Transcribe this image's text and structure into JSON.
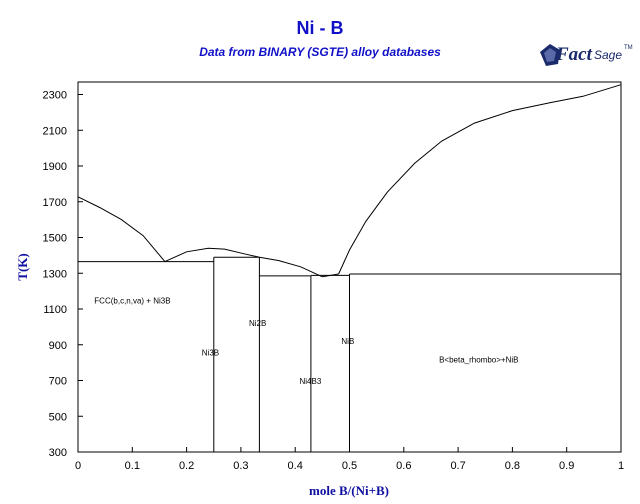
{
  "title": "Ni - B",
  "subtitle": "Data from BINARY (SGTE) alloy databases",
  "logo": {
    "fact": "Fact",
    "sage": "Sage",
    "tm": "TM",
    "icon": "factsage-logo-icon",
    "color": "#1a2a6a"
  },
  "colors": {
    "title": "#1010c8",
    "axis_label": "#1010a0",
    "line": "#000000"
  },
  "chart_data": {
    "type": "line",
    "title": "Ni - B",
    "subtitle": "Data from BINARY (SGTE) alloy databases",
    "xlabel": "mole B/(Ni+B)",
    "ylabel": "T(K)",
    "xlim": [
      0,
      1
    ],
    "ylim": [
      300,
      2370
    ],
    "xticks": [
      0,
      0.1,
      0.2,
      0.3,
      0.4,
      0.5,
      0.6,
      0.7,
      0.8,
      0.9,
      1
    ],
    "xtick_labels": [
      "0",
      "0.1",
      "0.2",
      "0.3",
      "0.4",
      "0.5",
      "0.6",
      "0.7",
      "0.8",
      "0.9",
      "1"
    ],
    "yticks": [
      300,
      500,
      700,
      900,
      1100,
      1300,
      1500,
      1700,
      1900,
      2100,
      2300
    ],
    "ytick_labels": [
      "300",
      "500",
      "700",
      "900",
      "1100",
      "1300",
      "1500",
      "1700",
      "1900",
      "2100",
      "2300"
    ],
    "grid": false,
    "legend": "none",
    "series": [
      {
        "x": [
          0,
          0.04,
          0.08,
          0.12,
          0.16
        ],
        "y": [
          1728,
          1668,
          1600,
          1510,
          1365
        ]
      },
      {
        "x": [
          0.16,
          0.2,
          0.24,
          0.27,
          0.31,
          0.334
        ],
        "y": [
          1365,
          1420,
          1440,
          1435,
          1406,
          1390
        ]
      },
      {
        "x": [
          0.334,
          0.37,
          0.41,
          0.45
        ],
        "y": [
          1390,
          1371,
          1336,
          1280
        ]
      },
      {
        "x": [
          0.45,
          0.48
        ],
        "y": [
          1280,
          1296
        ]
      },
      {
        "x": [
          0.48,
          0.5,
          0.53,
          0.57,
          0.62,
          0.67,
          0.73,
          0.8,
          0.87,
          0.93,
          1
        ],
        "y": [
          1296,
          1430,
          1590,
          1755,
          1915,
          2040,
          2140,
          2210,
          2255,
          2290,
          2355
        ]
      },
      {
        "x": [
          0,
          0.25
        ],
        "y": [
          1365,
          1365
        ]
      },
      {
        "x": [
          0.25,
          0.334
        ],
        "y": [
          1390,
          1390
        ]
      },
      {
        "x": [
          0.334,
          0.429
        ],
        "y": [
          1285,
          1285
        ]
      },
      {
        "x": [
          0.429,
          0.5
        ],
        "y": [
          1288,
          1288
        ]
      },
      {
        "x": [
          0.5,
          1
        ],
        "y": [
          1296,
          1296
        ]
      },
      {
        "x": [
          0.25,
          0.25
        ],
        "y": [
          300,
          1390
        ]
      },
      {
        "x": [
          0.334,
          0.334
        ],
        "y": [
          300,
          1390
        ]
      },
      {
        "x": [
          0.429,
          0.429
        ],
        "y": [
          300,
          1285
        ]
      },
      {
        "x": [
          0.5,
          0.5
        ],
        "y": [
          300,
          1296
        ]
      }
    ],
    "annotations": [
      {
        "text": "FCC(b,c,n,va) + Ni3B",
        "x": 0.03,
        "y": 1130
      },
      {
        "text": "Ni3B",
        "x": 0.228,
        "y": 840
      },
      {
        "text": "Ni2B",
        "x": 0.315,
        "y": 1005
      },
      {
        "text": "Ni4B3",
        "x": 0.408,
        "y": 680
      },
      {
        "text": "NiB",
        "x": 0.485,
        "y": 905
      },
      {
        "text": "B<beta_rhombo>+NiB",
        "x": 0.665,
        "y": 800
      }
    ]
  }
}
